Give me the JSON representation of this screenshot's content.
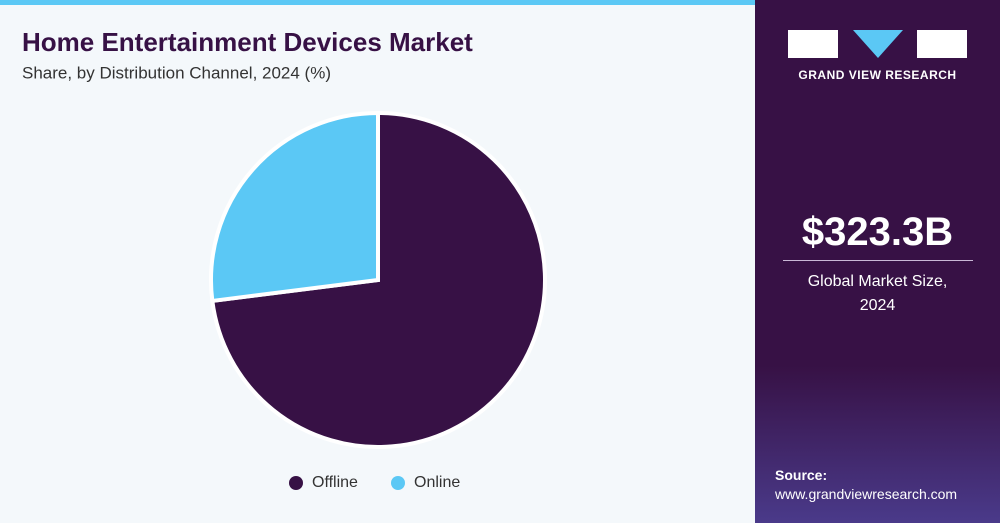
{
  "chart_data": {
    "type": "pie",
    "title": "Home Entertainment Devices Market",
    "subtitle": "Share, by Distribution Channel, 2024 (%)",
    "categories": [
      "Offline",
      "Online"
    ],
    "values": [
      73,
      27
    ],
    "colors": [
      "#371145",
      "#5bc8f5"
    ]
  },
  "sidebar": {
    "brand": "GRAND VIEW RESEARCH",
    "market_size": "$323.3B",
    "market_label": "Global Market Size, 2024",
    "source_label": "Source:",
    "source_url": "www.grandviewresearch.com"
  }
}
